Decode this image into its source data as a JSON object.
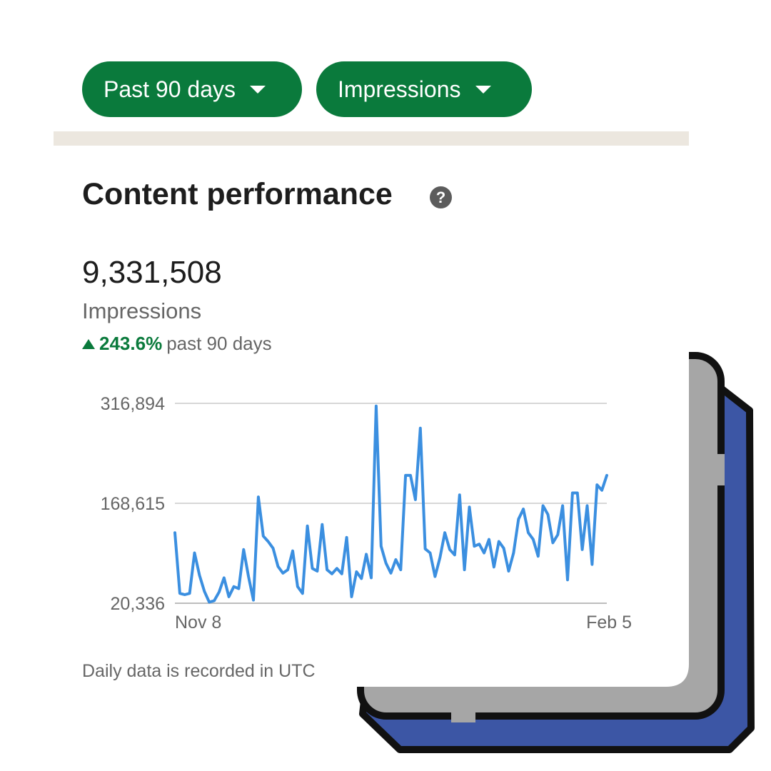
{
  "filters": {
    "range_label": "Past 90 days",
    "metric_label": "Impressions"
  },
  "section": {
    "title": "Content performance",
    "help_icon": "question-circle-icon",
    "help_glyph": "?"
  },
  "summary": {
    "value": "9,331,508",
    "label": "Impressions",
    "change_percent": "243.6%",
    "change_period": "past 90 days",
    "change_direction": "up"
  },
  "footnote": "Daily data is recorded in UTC",
  "colors": {
    "accent_green": "#0a7a3c",
    "line_blue": "#3b8fe0",
    "decor_blue": "#3c56a5",
    "decor_gray": "#a6a6a6"
  },
  "chart_data": {
    "type": "line",
    "title": "",
    "xlabel": "",
    "ylabel": "",
    "x_tick_labels": [
      "Nov 8",
      "Feb 5"
    ],
    "y_tick_labels": [
      "316,894",
      "168,615",
      "20,336"
    ],
    "ylim": [
      20336,
      316894
    ],
    "grid": true,
    "legend": "none",
    "series": [
      {
        "values": [
          125000,
          35000,
          33000,
          35000,
          95000,
          62000,
          38000,
          22000,
          24000,
          37000,
          58000,
          30000,
          45000,
          42000,
          100000,
          60000,
          25000,
          178000,
          120000,
          112000,
          102000,
          75000,
          65000,
          70000,
          98000,
          45000,
          35000,
          135000,
          72000,
          68000,
          137000,
          70000,
          64000,
          72000,
          64000,
          118000,
          30000,
          67000,
          57000,
          93000,
          58000,
          313000,
          105000,
          80000,
          65000,
          85000,
          70000,
          210000,
          210000,
          174000,
          280000,
          101000,
          95000,
          60000,
          88000,
          125000,
          100000,
          92000,
          181000,
          70000,
          163000,
          105000,
          108000,
          95000,
          115000,
          74000,
          112000,
          102000,
          68000,
          95000,
          145000,
          160000,
          125000,
          115000,
          90000,
          165000,
          152000,
          110000,
          122000,
          165000,
          55000,
          184000,
          184000,
          100000,
          165000,
          78000,
          196000,
          188000,
          210000
        ]
      }
    ]
  }
}
